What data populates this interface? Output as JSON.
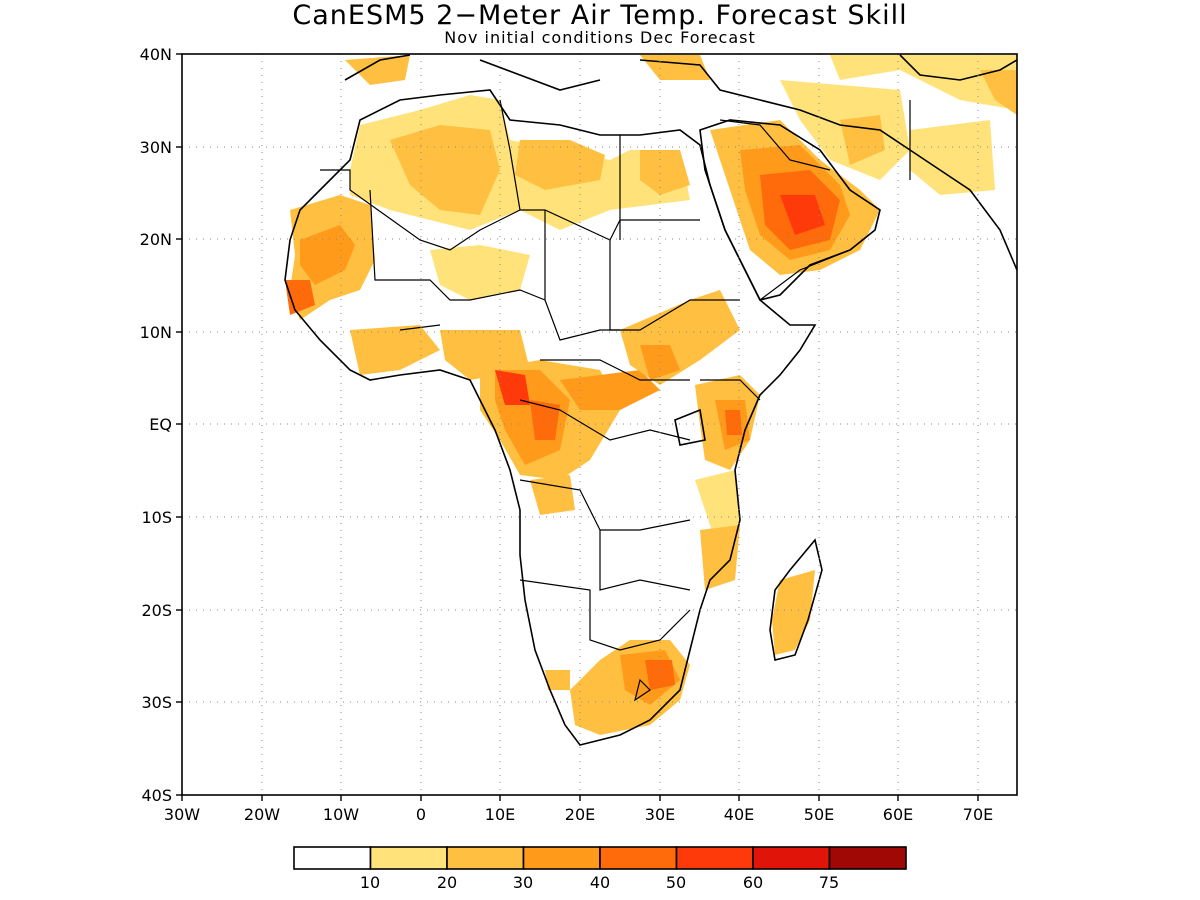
{
  "title": "CanESM5 2−Meter Air Temp. Forecast Skill",
  "subtitle": "Nov initial conditions  Dec Forecast",
  "map": {
    "region": "Africa and Middle East",
    "lon_range": [
      -30,
      75
    ],
    "lat_range": [
      -40,
      40
    ],
    "lon_ticks": [
      "30W",
      "20W",
      "10W",
      "0",
      "10E",
      "20E",
      "30E",
      "40E",
      "50E",
      "60E",
      "70E"
    ],
    "lat_ticks": [
      "40N",
      "30N",
      "20N",
      "10N",
      "EQ",
      "10S",
      "20S",
      "30S",
      "40S"
    ],
    "grid": "dotted"
  },
  "legend": {
    "labels": [
      "10",
      "20",
      "30",
      "40",
      "50",
      "60",
      "75"
    ],
    "colors": [
      "#ffffff",
      "#ffe27a",
      "#ffbf40",
      "#ff9a1a",
      "#ff6a0a",
      "#ff3a0a",
      "#e01408",
      "#a00806"
    ]
  },
  "shading_blobs": [
    {
      "region": "Saudi Arabia",
      "lon": 45,
      "lat": 22,
      "level": 5
    },
    {
      "region": "Gabon/Cameroon",
      "lon": 11,
      "lat": 3,
      "level": 6
    },
    {
      "region": "Kenya",
      "lon": 38.5,
      "lat": 0,
      "level": 5
    },
    {
      "region": "Lesotho/South Africa",
      "lon": 29,
      "lat": -27,
      "level": 5
    },
    {
      "region": "Senegal/Mauritania",
      "lon": -14,
      "lat": 18,
      "level": 4
    },
    {
      "region": "Algeria",
      "lon": 3,
      "lat": 28,
      "level": 2
    },
    {
      "region": "Madagascar",
      "lon": 47,
      "lat": -18,
      "level": 2
    }
  ]
}
